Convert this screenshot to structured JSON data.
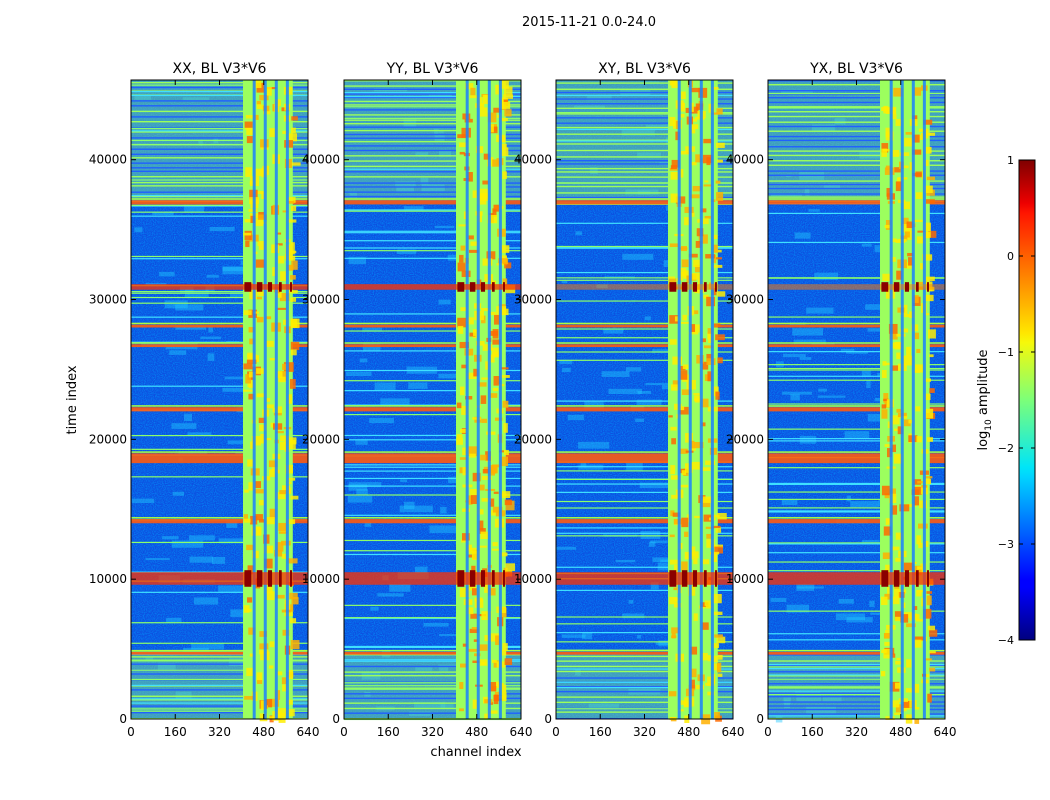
{
  "figure_title": "2015-11-21 0.0-24.0",
  "chart_data": {
    "type": "heatmap",
    "xlabel": "channel index",
    "ylabel": "time index",
    "xlim": [
      0,
      640
    ],
    "ylim": [
      0,
      45700
    ],
    "xticks": [
      "0",
      "160",
      "320",
      "480",
      "640"
    ],
    "yticks": [
      "0",
      "10000",
      "20000",
      "30000",
      "40000"
    ],
    "ytick_values": [
      0,
      10000,
      20000,
      30000,
      40000
    ],
    "xtick_values": [
      0,
      160,
      320,
      480,
      640
    ],
    "panels": [
      {
        "title": "XX, BL V3*V6",
        "strong": true
      },
      {
        "title": "YY, BL V3*V6",
        "strong": true
      },
      {
        "title": "XY, BL V3*V6",
        "strong": false
      },
      {
        "title": "YX, BL V3*V6",
        "strong": false
      }
    ],
    "colorbar": {
      "label": "log10 amplitude",
      "label_main": "log",
      "label_sub": "10",
      "label_tail": " amplitude",
      "range": [
        -4,
        1
      ],
      "ticks": [
        "1",
        "0",
        "−1",
        "−2",
        "−3",
        "−4"
      ],
      "tick_values": [
        1,
        0,
        -1,
        -2,
        -3,
        -4
      ],
      "colormap": "jet"
    },
    "features": {
      "band_channel_ranges": [
        [
          405,
          585
        ]
      ],
      "band_columns": [
        [
          410,
          435
        ],
        [
          455,
          475
        ],
        [
          495,
          510
        ],
        [
          535,
          545
        ],
        [
          575,
          582
        ]
      ],
      "hot_time_rows": [
        [
          9600,
          10500
        ],
        [
          30700,
          31100
        ]
      ],
      "rfi_time_rows": [
        [
          18300,
          19000
        ],
        [
          14000,
          14300
        ],
        [
          4600,
          4800
        ],
        [
          36800,
          37100
        ],
        [
          26600,
          26800
        ],
        [
          28000,
          28200
        ],
        [
          22000,
          22300
        ]
      ],
      "flagged_time_ranges": [
        [
          0,
          4700
        ],
        [
          37000,
          45700
        ]
      ]
    }
  }
}
